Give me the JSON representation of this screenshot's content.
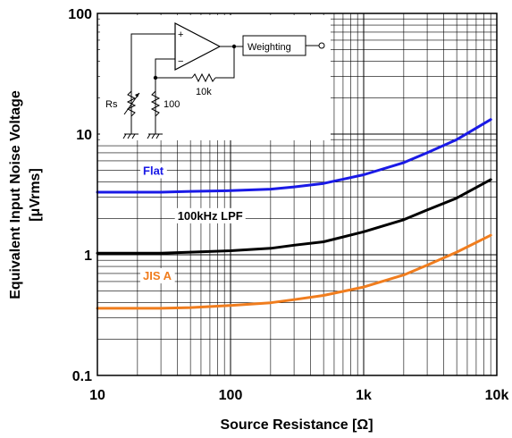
{
  "chart_data": {
    "type": "line",
    "title": "",
    "xlabel": "Source Resistance [Ω]",
    "ylabel_line1": "Equivalent Input Noise Voltage",
    "ylabel_line2": "[μVrms]",
    "xscale": "log",
    "yscale": "log",
    "xlim": [
      10,
      10000
    ],
    "ylim": [
      0.1,
      100
    ],
    "grid": true,
    "xticks": [
      {
        "value": 10,
        "label": "10"
      },
      {
        "value": 100,
        "label": "100"
      },
      {
        "value": 1000,
        "label": "1k"
      },
      {
        "value": 10000,
        "label": "10k"
      }
    ],
    "yticks": [
      {
        "value": 0.1,
        "label": "0.1"
      },
      {
        "value": 1,
        "label": "1"
      },
      {
        "value": 10,
        "label": "10"
      },
      {
        "value": 100,
        "label": "100"
      }
    ],
    "series": [
      {
        "name": "Flat",
        "color": "#1a1ae6",
        "label_at": {
          "x": 22,
          "y": 4.6
        },
        "x": [
          10,
          20,
          30,
          50,
          100,
          200,
          300,
          500,
          1000,
          2000,
          3000,
          5000,
          9000
        ],
        "y": [
          3.3,
          3.3,
          3.3,
          3.35,
          3.4,
          3.5,
          3.65,
          3.9,
          4.6,
          5.8,
          7.0,
          9.0,
          13.2
        ]
      },
      {
        "name": "100kHz LPF",
        "color": "#000000",
        "label_at": {
          "x": 40,
          "y": 1.95
        },
        "x": [
          10,
          20,
          30,
          50,
          100,
          200,
          300,
          500,
          1000,
          2000,
          3000,
          5000,
          9000
        ],
        "y": [
          1.03,
          1.03,
          1.03,
          1.05,
          1.08,
          1.13,
          1.2,
          1.28,
          1.55,
          1.95,
          2.35,
          2.95,
          4.2
        ]
      },
      {
        "name": "JIS A",
        "color": "#f07d1e",
        "label_at": {
          "x": 22,
          "y": 0.62
        },
        "x": [
          10,
          20,
          30,
          50,
          100,
          200,
          300,
          500,
          1000,
          2000,
          3000,
          5000,
          9000
        ],
        "y": [
          0.36,
          0.36,
          0.36,
          0.365,
          0.38,
          0.4,
          0.425,
          0.46,
          0.54,
          0.68,
          0.82,
          1.05,
          1.45
        ]
      }
    ]
  },
  "inset_schematic": {
    "weighting_label": "Weighting",
    "plus_sign": "+",
    "minus_sign": "−",
    "rs_label": "Rs",
    "r100_label": "100",
    "r10k_label": "10k"
  },
  "colors": {
    "background": "#ffffff",
    "grid": "#000000"
  }
}
